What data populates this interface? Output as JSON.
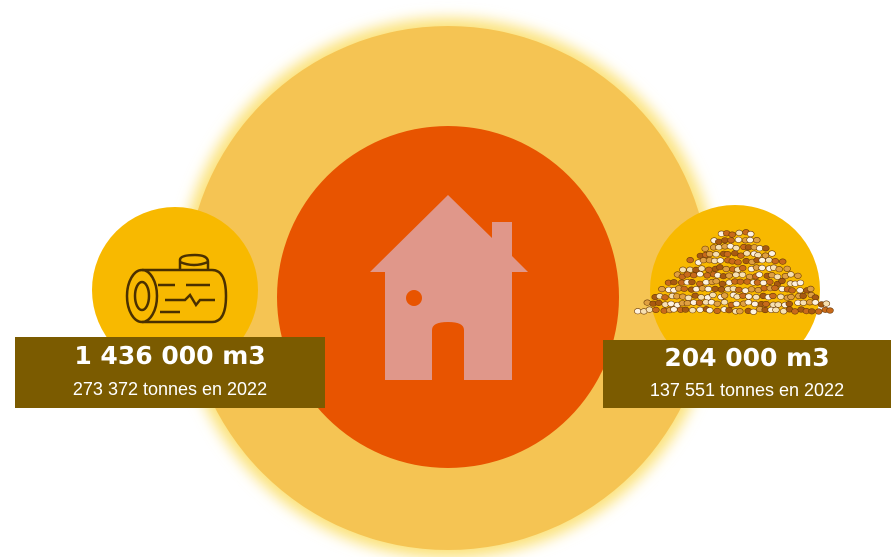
{
  "items": [
    {
      "volume": "1 436 000 m3",
      "detail": "273 372 tonnes en 2022"
    },
    {
      "volume": "204 000 m3",
      "detail": "137 551 tonnes en 2022"
    }
  ]
}
